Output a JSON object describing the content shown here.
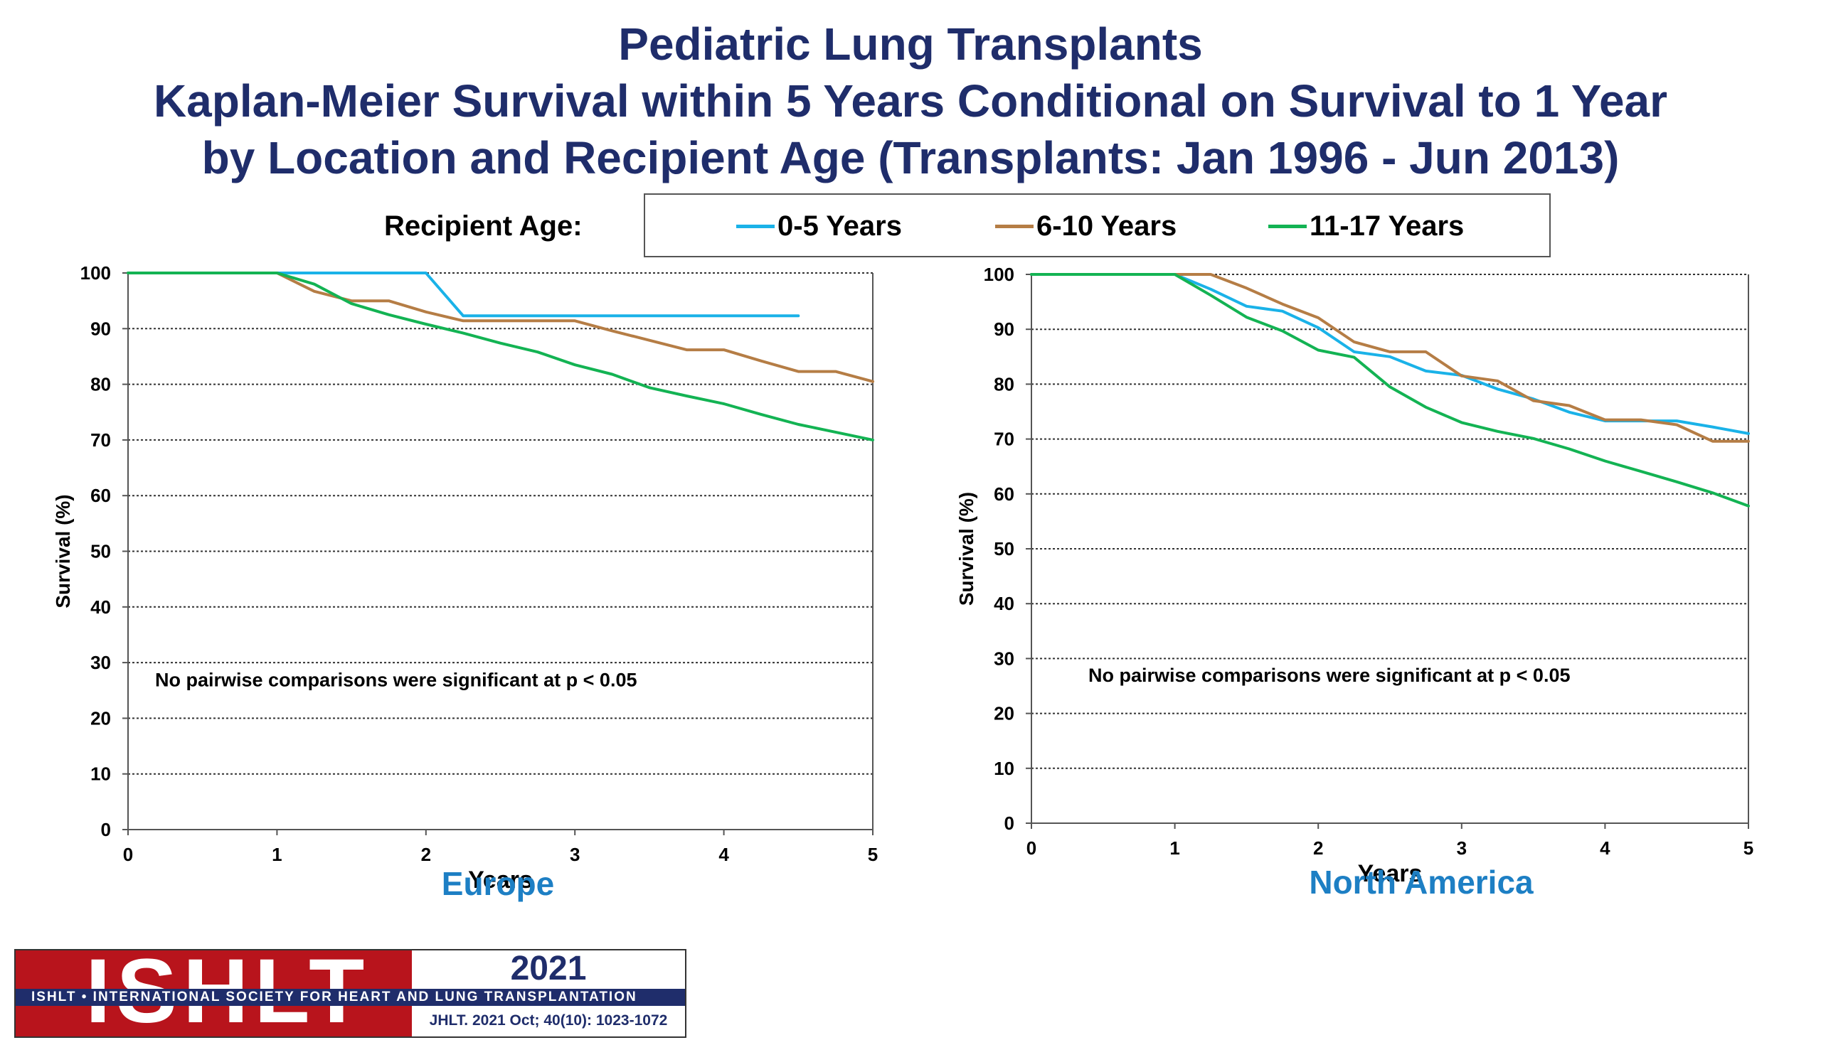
{
  "header": {
    "title_line1": "Pediatric Lung Transplants",
    "title_line2": "Kaplan-Meier Survival within 5 Years Conditional on Survival to 1 Year",
    "title_line3": "by Location and Recipient Age (Transplants: Jan 1996 - Jun 2013)"
  },
  "legend": {
    "label": "Recipient Age:",
    "items": [
      {
        "name": "0-5 Years",
        "color": "#1ab2e8"
      },
      {
        "name": "6-10 Years",
        "color": "#b57d45"
      },
      {
        "name": "11-17 Years",
        "color": "#13b353"
      }
    ]
  },
  "colors": {
    "title": "#1f2d6b",
    "region_label": "#1d7fc4",
    "logo_red": "#b8141c",
    "logo_navy": "#1f2d6b"
  },
  "chart_data": [
    {
      "type": "line",
      "region": "Europe",
      "xlabel": "Years",
      "ylabel": "Survival (%)",
      "xlim": [
        0,
        5
      ],
      "ylim": [
        0,
        100
      ],
      "xticks": [
        "0",
        "1",
        "2",
        "3",
        "4",
        "5"
      ],
      "yticks": [
        "0",
        "10",
        "20",
        "30",
        "40",
        "50",
        "60",
        "70",
        "80",
        "90",
        "100"
      ],
      "grid": "horizontal dashed",
      "annotation": "No pairwise comparisons were significant at p < 0.05",
      "series": [
        {
          "name": "0-5 Years",
          "color": "#1ab2e8",
          "x": [
            0,
            1,
            2,
            2.25,
            4.5
          ],
          "y": [
            100,
            100,
            100,
            92.3,
            92.3
          ]
        },
        {
          "name": "6-10 Years",
          "color": "#b57d45",
          "x": [
            0,
            1,
            1.25,
            1.5,
            1.75,
            2,
            2.25,
            2.5,
            2.75,
            3,
            3.25,
            3.5,
            3.75,
            4,
            4.25,
            4.5,
            4.75,
            5
          ],
          "y": [
            100,
            100,
            96.7,
            95,
            95,
            93,
            91.4,
            91.4,
            91.4,
            91.4,
            89.6,
            87.9,
            86.2,
            86.2,
            84.2,
            82.3,
            82.3,
            80.5
          ]
        },
        {
          "name": "11-17 Years",
          "color": "#13b353",
          "x": [
            0,
            1,
            1.25,
            1.5,
            1.75,
            2,
            2.25,
            2.5,
            2.75,
            3,
            3.25,
            3.5,
            3.75,
            4,
            4.25,
            4.5,
            4.75,
            5
          ],
          "y": [
            100,
            100,
            98,
            94.5,
            92.5,
            90.8,
            89.2,
            87.4,
            85.8,
            83.5,
            81.8,
            79.4,
            77.9,
            76.5,
            74.6,
            72.8,
            71.4,
            70
          ]
        }
      ]
    },
    {
      "type": "line",
      "region": "North America",
      "xlabel": "Years",
      "ylabel": "Survival (%)",
      "xlim": [
        0,
        5
      ],
      "ylim": [
        0,
        100
      ],
      "xticks": [
        "0",
        "1",
        "2",
        "3",
        "4",
        "5"
      ],
      "yticks": [
        "0",
        "10",
        "20",
        "30",
        "40",
        "50",
        "60",
        "70",
        "80",
        "90",
        "100"
      ],
      "grid": "horizontal dashed",
      "annotation": "No pairwise comparisons were significant at p < 0.05",
      "series": [
        {
          "name": "0-5 Years",
          "color": "#1ab2e8",
          "x": [
            0,
            1,
            1.25,
            1.5,
            1.75,
            2,
            2.25,
            2.5,
            2.75,
            3,
            3.25,
            3.5,
            3.75,
            4,
            4.25,
            4.5,
            4.75,
            5
          ],
          "y": [
            100,
            100,
            97.3,
            94.2,
            93.3,
            90.3,
            85.9,
            85,
            82.4,
            81.6,
            79.1,
            77.3,
            74.9,
            73.3,
            73.3,
            73.3,
            72.2,
            71
          ]
        },
        {
          "name": "6-10 Years",
          "color": "#b57d45",
          "x": [
            0,
            1,
            1.25,
            1.5,
            1.75,
            2,
            2.25,
            2.5,
            2.75,
            3,
            3.25,
            3.5,
            3.75,
            4,
            4.25,
            4.5,
            4.75,
            5
          ],
          "y": [
            100,
            100,
            100,
            97.5,
            94.6,
            92.1,
            87.7,
            85.9,
            85.9,
            81.5,
            80.6,
            77,
            76.1,
            73.5,
            73.5,
            72.6,
            69.6,
            69.6
          ]
        },
        {
          "name": "11-17 Years",
          "color": "#13b353",
          "x": [
            0,
            1,
            1.25,
            1.5,
            1.75,
            2,
            2.25,
            2.5,
            2.75,
            3,
            3.25,
            3.5,
            3.75,
            4,
            4.25,
            4.5,
            4.75,
            5
          ],
          "y": [
            100,
            100,
            96.2,
            92.2,
            89.7,
            86.2,
            84.9,
            79.5,
            75.8,
            73,
            71.4,
            70.1,
            68.2,
            66,
            64.1,
            62.2,
            60.2,
            57.8
          ]
        }
      ]
    }
  ],
  "footer": {
    "logo_text": "ISHLT",
    "society_name": "ISHLT • INTERNATIONAL SOCIETY FOR HEART AND LUNG TRANSPLANTATION",
    "year": "2021",
    "citation": "JHLT. 2021 Oct; 40(10): 1023-1072"
  }
}
